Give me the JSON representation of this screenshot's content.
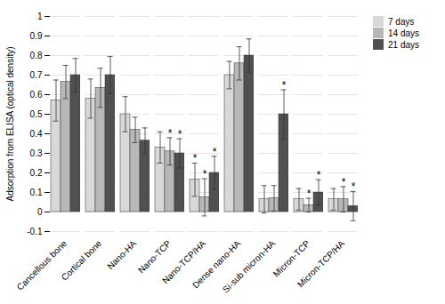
{
  "chart_data": {
    "type": "bar",
    "ylabel": "Adsorption from ELISA (optical density)",
    "categories": [
      "Cancellous bone",
      "Cortical bone",
      "Nano-HA",
      "Nano-TCP",
      "Nano-TCP/HA",
      "Dense nano-HA",
      "Si-sub micron-HA",
      "Micron-TCP",
      "Micron-TCP/HA"
    ],
    "series": [
      {
        "name": "7 days",
        "color": "#d8d8d8",
        "values": [
          0.57,
          0.58,
          0.5,
          0.33,
          0.165,
          0.7,
          0.065,
          0.065,
          0.065
        ],
        "errors": [
          0.105,
          0.1,
          0.09,
          0.08,
          0.085,
          0.07,
          0.07,
          0.055,
          0.055
        ]
      },
      {
        "name": "14 days",
        "color": "#b8b8b8",
        "values": [
          0.665,
          0.635,
          0.42,
          0.31,
          0.075,
          0.76,
          0.07,
          0.035,
          0.065
        ],
        "errors": [
          0.085,
          0.1,
          0.065,
          0.07,
          0.095,
          0.085,
          0.065,
          0.035,
          0.065
        ]
      },
      {
        "name": "21 days",
        "color": "#505050",
        "values": [
          0.7,
          0.7,
          0.365,
          0.3,
          0.2,
          0.8,
          0.5,
          0.1,
          0.03
        ],
        "errors": [
          0.085,
          0.095,
          0.065,
          0.075,
          0.085,
          0.085,
          0.125,
          0.065,
          0.075
        ]
      }
    ],
    "annotations": [
      {
        "text": "*",
        "series": "7 days",
        "category": "Nano-TCP/HA"
      },
      {
        "text": "*",
        "series": "14 days",
        "category": "Nano-TCP"
      },
      {
        "text": "*",
        "series": "14 days",
        "category": "Nano-TCP/HA"
      },
      {
        "text": "*",
        "series": "14 days",
        "category": "Micron-TCP"
      },
      {
        "text": "*",
        "series": "14 days",
        "category": "Micron-TCP/HA"
      },
      {
        "text": "*",
        "series": "21 days",
        "category": "Nano-TCP"
      },
      {
        "text": "*",
        "series": "21 days",
        "category": "Nano-TCP/HA"
      },
      {
        "text": "*",
        "series": "21 days",
        "category": "Si-sub micron-HA"
      },
      {
        "text": "*",
        "series": "21 days",
        "category": "Micron-TCP"
      },
      {
        "text": "*",
        "series": "21 days",
        "category": "Micron-TCP/HA"
      }
    ],
    "ylim": [
      -0.1,
      1
    ],
    "yticks": [
      -0.1,
      0,
      0.1,
      0.2,
      0.3,
      0.4,
      0.5,
      0.6,
      0.7,
      0.8,
      0.9,
      1
    ],
    "grid": true,
    "legend": "right"
  }
}
